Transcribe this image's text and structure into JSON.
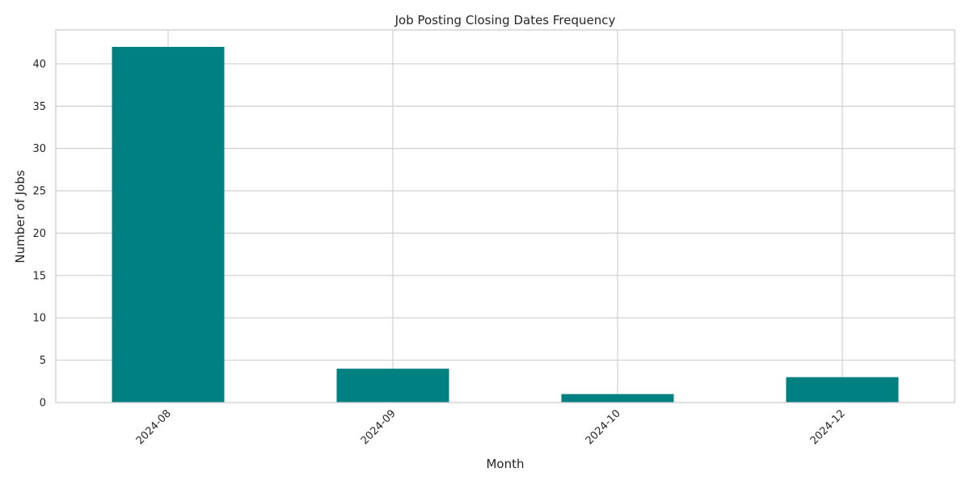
{
  "chart_data": {
    "type": "bar",
    "title": "Job Posting Closing Dates Frequency",
    "xlabel": "Month",
    "ylabel": "Number of Jobs",
    "categories": [
      "2024-08",
      "2024-09",
      "2024-10",
      "2024-12"
    ],
    "values": [
      42,
      4,
      1,
      3
    ],
    "ylim": [
      0,
      44
    ],
    "yticks": [
      0,
      5,
      10,
      15,
      20,
      25,
      30,
      35,
      40
    ],
    "grid": true,
    "legend": "none",
    "colors": {
      "bar": "#008080",
      "grid": "#cccccc",
      "axes_edge": "#cccccc",
      "background": "#ffffff"
    }
  }
}
